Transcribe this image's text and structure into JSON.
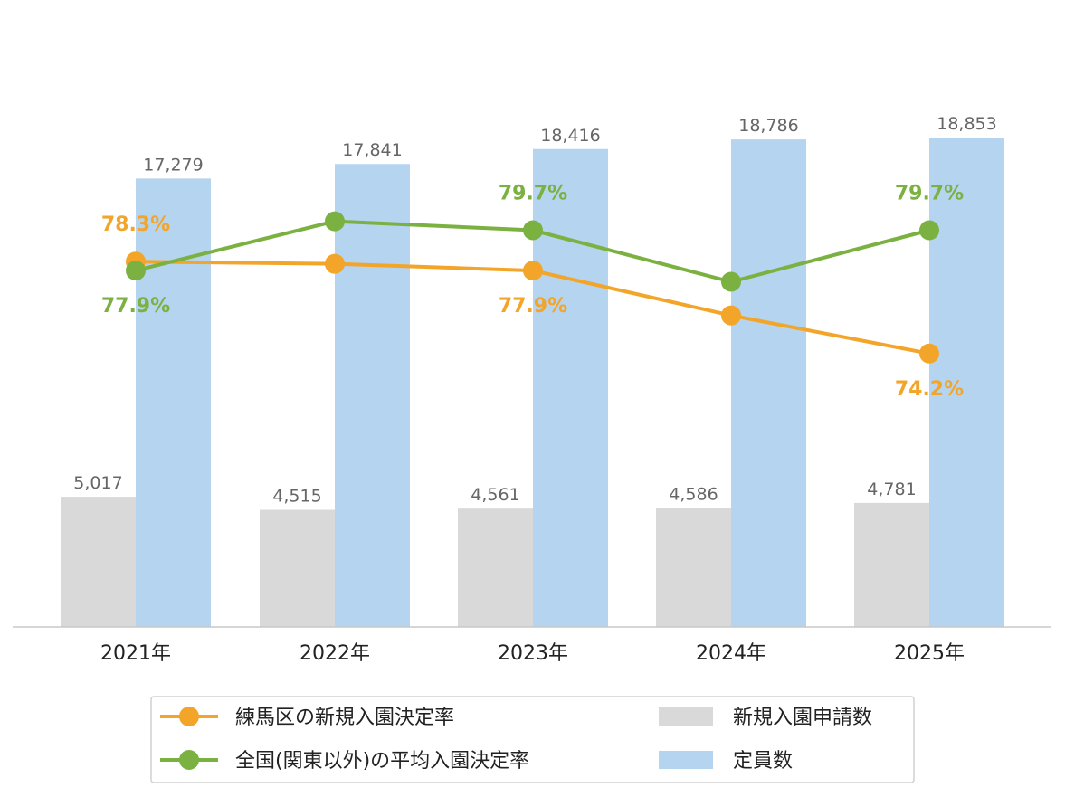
{
  "chart_data": {
    "type": "bar",
    "categories": [
      "2021年",
      "2022年",
      "2023年",
      "2024年",
      "2025年"
    ],
    "bar_series": [
      {
        "name": "新規入園申請数",
        "color": "#d9d9d9",
        "values": [
          5017,
          4515,
          4561,
          4586,
          4781
        ],
        "labels": [
          "5,017",
          "4,515",
          "4,561",
          "4,586",
          "4,781"
        ]
      },
      {
        "name": "定員数",
        "color": "#b4d4ef",
        "values": [
          17279,
          17841,
          18416,
          18786,
          18853
        ],
        "labels": [
          "17,279",
          "17,841",
          "18,416",
          "18,786",
          "18,853"
        ]
      }
    ],
    "line_series": [
      {
        "name": "練馬区の新規入園決定率",
        "color": "#f3a52a",
        "values": [
          78.3,
          78.2,
          77.9,
          75.9,
          74.2
        ],
        "labels": [
          "78.3%",
          "",
          "77.9%",
          "",
          "74.2%"
        ]
      },
      {
        "name": "全国(関東以外)の平均入園決定率",
        "color": "#7ab141",
        "values": [
          77.9,
          80.1,
          79.7,
          77.4,
          79.7
        ],
        "labels": [
          "77.9%",
          "",
          "79.7%",
          "",
          "79.7%"
        ]
      }
    ],
    "bar_ylim": [
      0,
      19000
    ],
    "line_ylim": [
      62.0,
      84.0
    ],
    "grid": false,
    "legend_position": "bottom"
  }
}
